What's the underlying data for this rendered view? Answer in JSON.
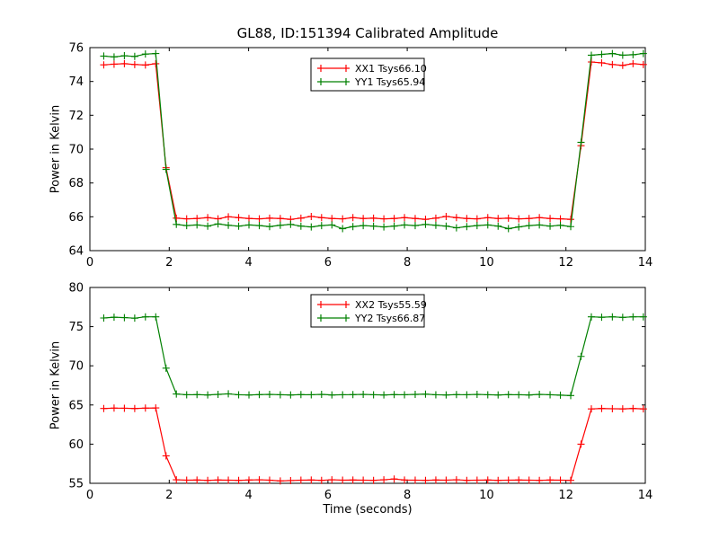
{
  "figure": {
    "title": "GL88, ID:151394 Calibrated Amplitude",
    "background": "#ffffff",
    "axis_color": "#000000"
  },
  "chart_data": [
    {
      "type": "line",
      "ylabel": "Power in Kelvin",
      "xlabel": "",
      "xlim": [
        0,
        14
      ],
      "ylim": [
        64,
        76
      ],
      "xticks": [
        0,
        2,
        4,
        6,
        8,
        10,
        12,
        14
      ],
      "yticks": [
        64,
        66,
        68,
        70,
        72,
        74,
        76
      ],
      "grid": false,
      "legend_position": "top-center",
      "marker": "+",
      "x": [
        0.35,
        0.61,
        0.87,
        1.13,
        1.4,
        1.66,
        1.92,
        2.18,
        2.44,
        2.7,
        2.97,
        3.23,
        3.49,
        3.75,
        4.01,
        4.27,
        4.53,
        4.8,
        5.06,
        5.32,
        5.58,
        5.84,
        6.1,
        6.37,
        6.63,
        6.89,
        7.15,
        7.41,
        7.67,
        7.93,
        8.2,
        8.46,
        8.72,
        8.98,
        9.24,
        9.5,
        9.76,
        10.03,
        10.29,
        10.55,
        10.81,
        11.07,
        11.33,
        11.6,
        11.86,
        12.12,
        12.38,
        12.64,
        12.9,
        13.17,
        13.43,
        13.69,
        13.95
      ],
      "series": [
        {
          "name": "XX1 Tsys66.10",
          "color": "#ff0000",
          "values": [
            74.98,
            75.02,
            75.05,
            75.0,
            74.97,
            75.05,
            68.9,
            65.92,
            65.88,
            65.9,
            65.95,
            65.88,
            66.0,
            65.95,
            65.9,
            65.88,
            65.92,
            65.9,
            65.85,
            65.92,
            66.02,
            65.95,
            65.9,
            65.88,
            65.95,
            65.9,
            65.92,
            65.88,
            65.9,
            65.95,
            65.9,
            65.85,
            65.92,
            66.02,
            65.95,
            65.9,
            65.88,
            65.95,
            65.9,
            65.92,
            65.88,
            65.9,
            65.95,
            65.9,
            65.88,
            65.85,
            70.2,
            75.15,
            75.1,
            75.0,
            74.95,
            75.05,
            75.0
          ]
        },
        {
          "name": "YY1 Tsys65.94",
          "color": "#008000",
          "values": [
            75.5,
            75.45,
            75.52,
            75.48,
            75.62,
            75.65,
            68.8,
            65.55,
            65.48,
            65.52,
            65.45,
            65.58,
            65.5,
            65.45,
            65.52,
            65.48,
            65.42,
            65.5,
            65.55,
            65.45,
            65.4,
            65.48,
            65.52,
            65.3,
            65.42,
            65.48,
            65.45,
            65.4,
            65.45,
            65.52,
            65.48,
            65.55,
            65.5,
            65.45,
            65.35,
            65.42,
            65.48,
            65.52,
            65.45,
            65.3,
            65.4,
            65.48,
            65.52,
            65.45,
            65.5,
            65.42,
            70.4,
            75.55,
            75.6,
            75.65,
            75.55,
            75.58,
            75.65
          ]
        }
      ]
    },
    {
      "type": "line",
      "ylabel": "Power in Kelvin",
      "xlabel": "Time (seconds)",
      "xlim": [
        0,
        14
      ],
      "ylim": [
        55,
        80
      ],
      "xticks": [
        0,
        2,
        4,
        6,
        8,
        10,
        12,
        14
      ],
      "yticks": [
        55,
        60,
        65,
        70,
        75,
        80
      ],
      "grid": false,
      "legend_position": "top-center",
      "marker": "+",
      "x": [
        0.35,
        0.61,
        0.87,
        1.13,
        1.4,
        1.66,
        1.92,
        2.18,
        2.44,
        2.7,
        2.97,
        3.23,
        3.49,
        3.75,
        4.01,
        4.27,
        4.53,
        4.8,
        5.06,
        5.32,
        5.58,
        5.84,
        6.1,
        6.37,
        6.63,
        6.89,
        7.15,
        7.41,
        7.67,
        7.93,
        8.2,
        8.46,
        8.72,
        8.98,
        9.24,
        9.5,
        9.76,
        10.03,
        10.29,
        10.55,
        10.81,
        11.07,
        11.33,
        11.6,
        11.86,
        12.12,
        12.38,
        12.64,
        12.9,
        13.17,
        13.43,
        13.69,
        13.95
      ],
      "series": [
        {
          "name": "XX2 Tsys55.59",
          "color": "#ff0000",
          "values": [
            64.55,
            64.6,
            64.58,
            64.55,
            64.6,
            64.62,
            58.5,
            55.45,
            55.4,
            55.42,
            55.38,
            55.42,
            55.4,
            55.38,
            55.42,
            55.45,
            55.4,
            55.3,
            55.35,
            55.4,
            55.42,
            55.38,
            55.45,
            55.4,
            55.42,
            55.4,
            55.38,
            55.45,
            55.55,
            55.42,
            55.4,
            55.38,
            55.42,
            55.4,
            55.45,
            55.38,
            55.4,
            55.42,
            55.38,
            55.4,
            55.42,
            55.4,
            55.38,
            55.42,
            55.4,
            55.38,
            60.0,
            64.5,
            64.55,
            64.52,
            64.5,
            64.55,
            64.5
          ]
        },
        {
          "name": "YY2 Tsys66.87",
          "color": "#008000",
          "values": [
            76.1,
            76.2,
            76.15,
            76.08,
            76.25,
            76.25,
            69.7,
            66.4,
            66.3,
            66.32,
            66.28,
            66.35,
            66.42,
            66.3,
            66.28,
            66.32,
            66.35,
            66.3,
            66.28,
            66.32,
            66.3,
            66.35,
            66.28,
            66.3,
            66.32,
            66.35,
            66.3,
            66.28,
            66.32,
            66.3,
            66.35,
            66.38,
            66.3,
            66.28,
            66.32,
            66.3,
            66.35,
            66.3,
            66.28,
            66.32,
            66.3,
            66.28,
            66.35,
            66.3,
            66.25,
            66.2,
            71.2,
            76.25,
            76.2,
            76.25,
            76.18,
            76.25,
            76.25
          ]
        }
      ]
    }
  ]
}
